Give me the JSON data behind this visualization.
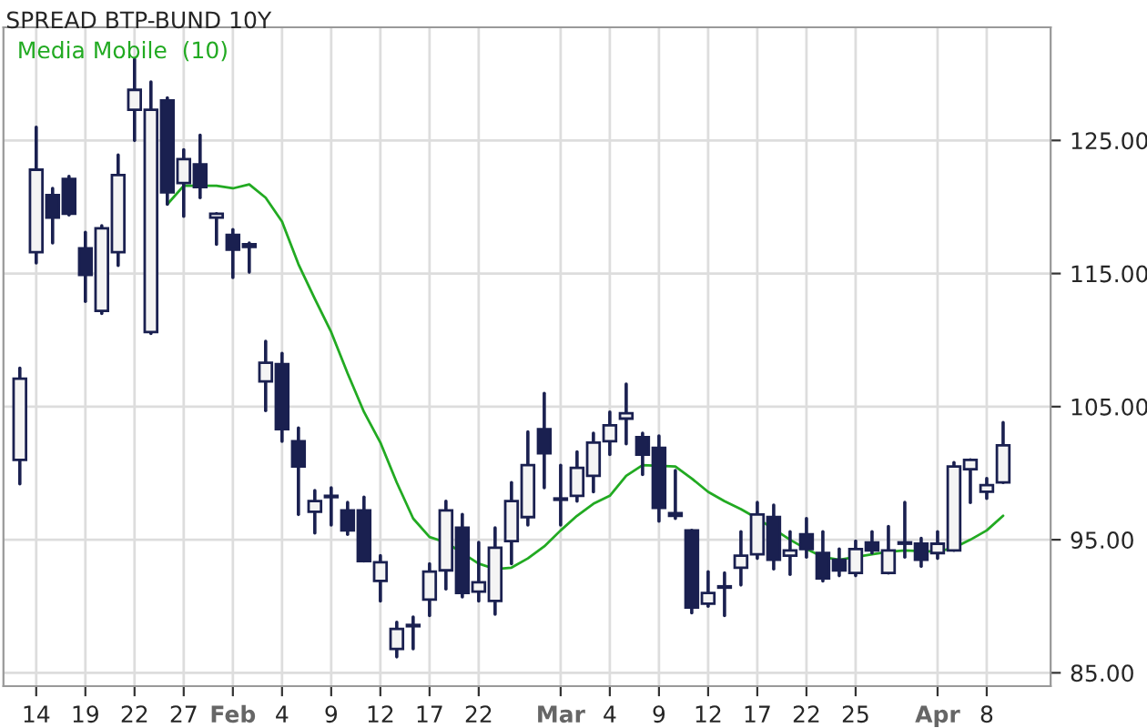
{
  "chart_data": {
    "type": "candlestick",
    "title": "SPREAD BTP-BUND 10Y",
    "categories": [
      null,
      "14",
      null,
      null,
      "19",
      null,
      null,
      "22",
      null,
      null,
      "27",
      null,
      null,
      "Feb",
      null,
      null,
      "4",
      null,
      null,
      "9",
      null,
      null,
      "12",
      null,
      null,
      "17",
      null,
      null,
      "22",
      null,
      null,
      null,
      null,
      "Mar",
      null,
      null,
      "4",
      null,
      null,
      "9",
      null,
      null,
      "12",
      null,
      null,
      "17",
      null,
      null,
      "22",
      null,
      null,
      "25",
      null,
      null,
      null,
      null,
      "Apr",
      null,
      null,
      "8",
      null
    ],
    "ohlc": [
      [
        101.0,
        107.9,
        99.2,
        107.1
      ],
      [
        116.6,
        126.0,
        115.8,
        122.8
      ],
      [
        120.9,
        121.4,
        117.3,
        119.2
      ],
      [
        122.1,
        122.3,
        119.4,
        119.5
      ],
      [
        116.9,
        118.1,
        112.9,
        114.9
      ],
      [
        112.2,
        118.6,
        112.0,
        118.4
      ],
      [
        116.6,
        123.9,
        115.6,
        122.4
      ],
      [
        127.3,
        131.1,
        125.0,
        128.8
      ],
      [
        110.6,
        129.4,
        110.5,
        127.3
      ],
      [
        128.0,
        128.2,
        120.2,
        121.1
      ],
      [
        121.8,
        124.3,
        119.3,
        123.6
      ],
      [
        123.2,
        125.4,
        120.7,
        121.5
      ],
      [
        119.2,
        119.5,
        117.2,
        119.5
      ],
      [
        117.9,
        118.3,
        114.7,
        116.8
      ],
      [
        117.2,
        117.3,
        115.1,
        117.0
      ],
      [
        106.9,
        109.9,
        104.7,
        108.3
      ],
      [
        108.2,
        109.0,
        102.4,
        103.3
      ],
      [
        102.4,
        103.4,
        96.9,
        100.5
      ],
      [
        97.1,
        98.7,
        95.5,
        97.9
      ],
      [
        98.2,
        98.9,
        96.1,
        98.3
      ],
      [
        97.2,
        97.8,
        95.4,
        95.7
      ],
      [
        97.2,
        98.2,
        93.4,
        93.4
      ],
      [
        91.9,
        93.8,
        90.4,
        93.3
      ],
      [
        86.8,
        88.8,
        86.2,
        88.3
      ],
      [
        88.5,
        89.2,
        86.8,
        88.6
      ],
      [
        90.5,
        93.2,
        89.3,
        92.6
      ],
      [
        92.7,
        97.9,
        91.3,
        97.2
      ],
      [
        95.9,
        96.9,
        90.7,
        91.0
      ],
      [
        91.1,
        94.8,
        90.4,
        91.8
      ],
      [
        90.4,
        95.9,
        89.4,
        94.4
      ],
      [
        94.9,
        99.3,
        93.2,
        97.9
      ],
      [
        96.7,
        103.1,
        96.1,
        100.6
      ],
      [
        103.3,
        106.0,
        98.9,
        101.5
      ],
      [
        98.1,
        100.6,
        96.1,
        98.0
      ],
      [
        98.3,
        101.6,
        97.9,
        100.4
      ],
      [
        99.8,
        103.0,
        98.6,
        102.3
      ],
      [
        102.4,
        104.6,
        101.4,
        103.6
      ],
      [
        104.1,
        106.7,
        102.2,
        104.5
      ],
      [
        102.7,
        103.0,
        99.9,
        101.4
      ],
      [
        101.9,
        102.8,
        96.4,
        97.4
      ],
      [
        97.0,
        100.2,
        96.6,
        96.8
      ],
      [
        95.7,
        95.7,
        89.5,
        89.9
      ],
      [
        90.2,
        92.6,
        90.0,
        91.0
      ],
      [
        91.4,
        92.5,
        89.3,
        91.5
      ],
      [
        92.9,
        95.6,
        91.6,
        93.8
      ],
      [
        93.9,
        97.8,
        93.6,
        96.9
      ],
      [
        96.7,
        97.6,
        92.8,
        93.5
      ],
      [
        93.8,
        95.6,
        92.4,
        94.2
      ],
      [
        95.4,
        96.6,
        93.7,
        94.3
      ],
      [
        94.0,
        95.6,
        91.9,
        92.1
      ],
      [
        93.5,
        94.3,
        92.3,
        92.7
      ],
      [
        92.5,
        94.9,
        92.3,
        94.3
      ],
      [
        94.8,
        95.6,
        94.0,
        94.2
      ],
      [
        92.5,
        96.0,
        92.5,
        94.2
      ],
      [
        94.8,
        97.8,
        93.7,
        94.7
      ],
      [
        94.7,
        95.1,
        93.0,
        93.5
      ],
      [
        94.0,
        95.6,
        93.6,
        94.7
      ],
      [
        94.2,
        100.8,
        94.2,
        100.5
      ],
      [
        100.3,
        101.0,
        97.8,
        101.0
      ],
      [
        98.6,
        99.6,
        98.1,
        99.1
      ],
      [
        99.3,
        103.8,
        99.3,
        102.1
      ]
    ],
    "series": [
      {
        "name": "Media Mobile  (10)",
        "type": "line",
        "color": "#22aa22",
        "values": [
          null,
          null,
          null,
          null,
          null,
          null,
          null,
          null,
          null,
          120.2,
          121.6,
          null,
          121.6,
          121.4,
          121.7,
          120.7,
          118.9,
          115.7,
          113.1,
          110.6,
          107.5,
          104.6,
          102.3,
          99.3,
          96.6,
          95.2,
          94.8,
          null,
          93.2,
          92.8,
          92.9,
          93.6,
          94.5,
          95.7,
          96.8,
          97.7,
          98.3,
          99.8,
          100.6,
          null,
          100.5,
          99.6,
          98.6,
          97.9,
          97.3,
          96.6,
          null,
          95.0,
          94.3,
          93.7,
          93.5,
          93.7,
          93.9,
          94.1,
          94.2,
          null,
          94.1,
          94.4,
          95.0,
          95.7,
          96.8
        ]
      }
    ],
    "ylim": [
      84,
      133.5
    ],
    "yticks": [
      {
        "value": 85,
        "label": "85.00"
      },
      {
        "value": 95,
        "label": "95.00"
      },
      {
        "value": 105,
        "label": "105.00"
      },
      {
        "value": 115,
        "label": "115.00"
      },
      {
        "value": 125,
        "label": "125.00"
      }
    ],
    "grid": true,
    "legend": "top left"
  }
}
